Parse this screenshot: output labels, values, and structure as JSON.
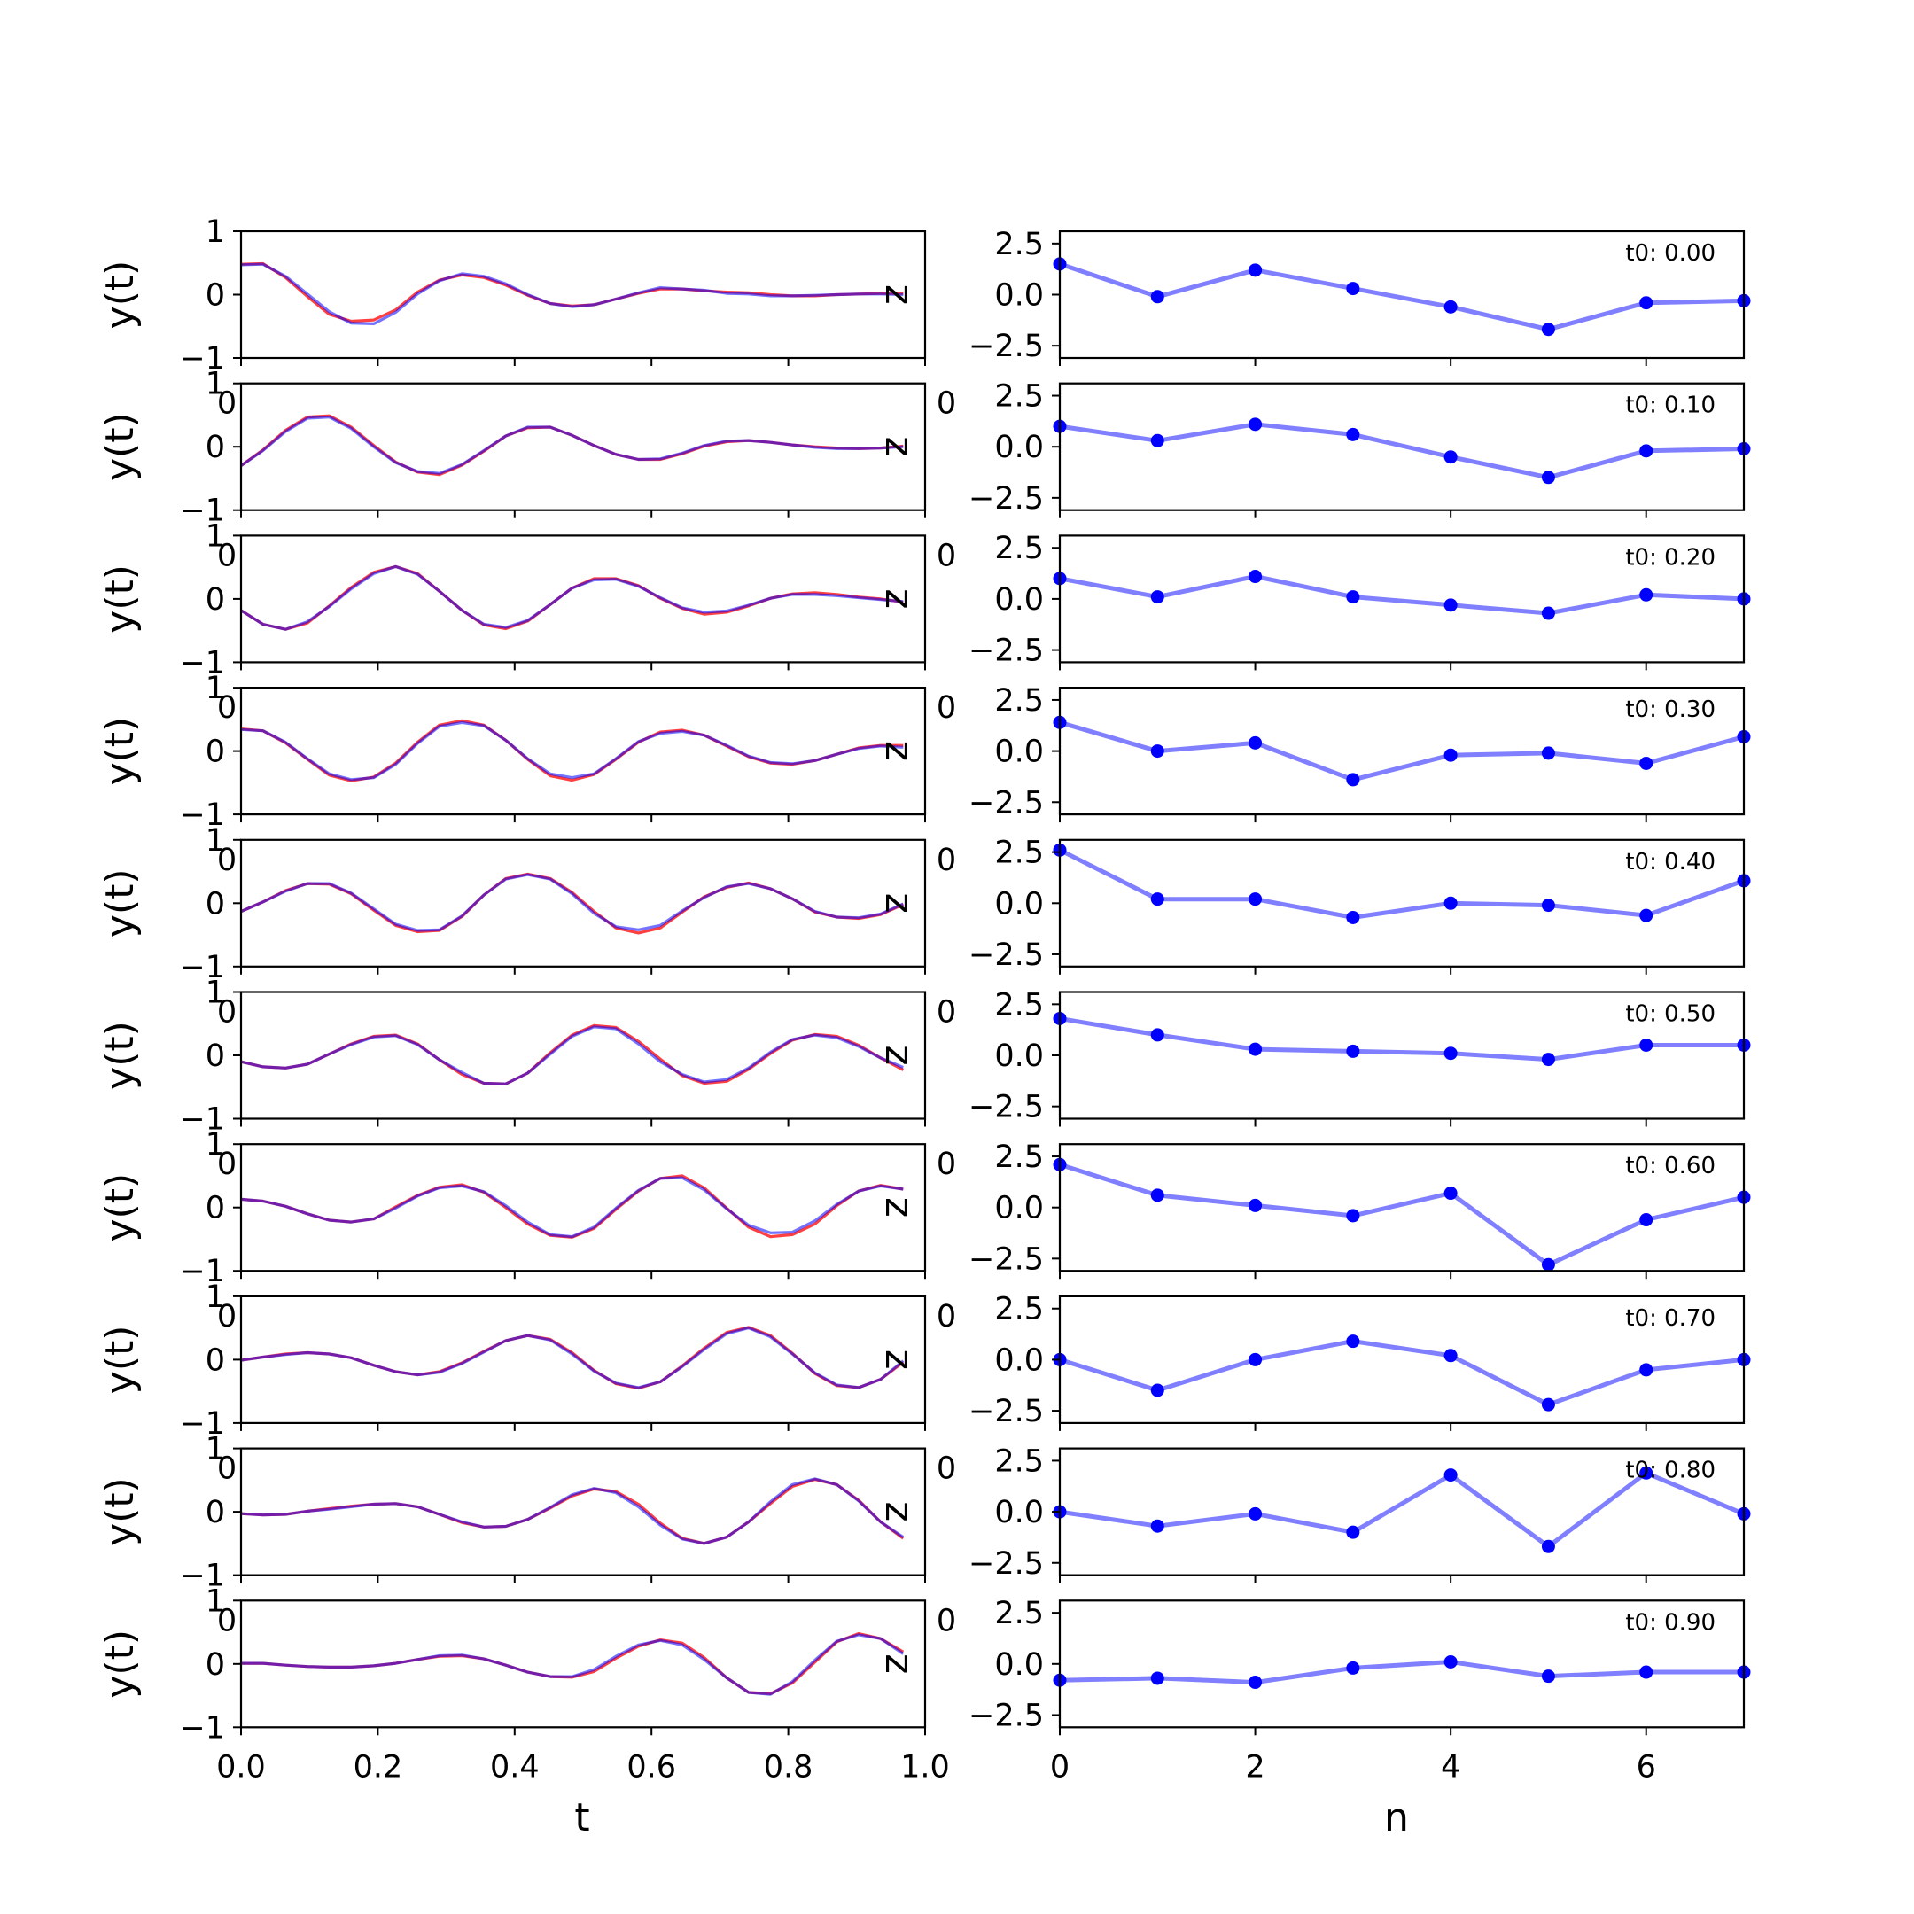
{
  "chart_data": {
    "type": "line",
    "layout": "10 rows x 2 columns of subplots",
    "left_column": {
      "ylabel": "y(t)",
      "xlabel": "t",
      "xlim": [
        0.0,
        1.0
      ],
      "ylim": [
        -1,
        1
      ],
      "xticks": [
        "0.0",
        "0.2",
        "0.4",
        "0.6",
        "0.8",
        "1.0"
      ],
      "yticks": [
        "1",
        "0",
        "−1"
      ],
      "right_axis_label": "z",
      "overlap_label": "0",
      "series_colors": {
        "blue": "#0000ff",
        "red": "#ff0000"
      }
    },
    "right_column": {
      "xlabel": "n",
      "xlim": [
        0,
        7
      ],
      "ylim": [
        -3.1,
        3.1
      ],
      "xticks": [
        "0",
        "2",
        "4",
        "6"
      ],
      "yticks": [
        "2.5",
        "0.0",
        "−2.5"
      ],
      "overlap_label": "0",
      "marker_color": "#0000ff",
      "line_color": "#7f7fff"
    },
    "t": [
      0.0,
      0.032,
      0.065,
      0.097,
      0.129,
      0.161,
      0.194,
      0.226,
      0.258,
      0.29,
      0.323,
      0.355,
      0.387,
      0.419,
      0.452,
      0.484,
      0.516,
      0.548,
      0.581,
      0.613,
      0.645,
      0.677,
      0.71,
      0.742,
      0.774,
      0.806,
      0.839,
      0.871,
      0.903,
      0.935,
      0.968
    ],
    "n": [
      0,
      1,
      2,
      3,
      4,
      5,
      6,
      7
    ],
    "rows": [
      {
        "t0_label": "t0: 0.00",
        "y_blue": [
          0.47,
          0.48,
          0.29,
          0.01,
          -0.27,
          -0.45,
          -0.46,
          -0.28,
          0.01,
          0.22,
          0.33,
          0.29,
          0.17,
          0.0,
          -0.14,
          -0.19,
          -0.16,
          -0.07,
          0.03,
          0.11,
          0.09,
          0.07,
          0.02,
          0.01,
          -0.02,
          -0.02,
          -0.01,
          0.0,
          0.01,
          0.01,
          0.0
        ],
        "y_red": [
          0.48,
          0.49,
          0.27,
          -0.03,
          -0.31,
          -0.42,
          -0.4,
          -0.24,
          0.04,
          0.23,
          0.31,
          0.27,
          0.15,
          -0.01,
          -0.14,
          -0.18,
          -0.16,
          -0.07,
          0.02,
          0.09,
          0.09,
          0.06,
          0.04,
          0.03,
          0.0,
          -0.02,
          -0.02,
          0.0,
          0.01,
          0.02,
          0.02
        ],
        "z": [
          1.5,
          -0.1,
          1.2,
          0.3,
          -0.6,
          -1.7,
          -0.4,
          -0.3
        ]
      },
      {
        "t0_label": "t0: 0.10",
        "y_blue": [
          -0.3,
          -0.06,
          0.24,
          0.45,
          0.47,
          0.29,
          0.0,
          -0.25,
          -0.39,
          -0.42,
          -0.28,
          -0.06,
          0.17,
          0.31,
          0.31,
          0.18,
          0.02,
          -0.12,
          -0.2,
          -0.19,
          -0.1,
          0.02,
          0.09,
          0.1,
          0.07,
          0.03,
          -0.01,
          -0.03,
          -0.03,
          -0.02,
          0.0
        ],
        "y_red": [
          -0.3,
          -0.05,
          0.26,
          0.47,
          0.49,
          0.31,
          0.02,
          -0.24,
          -0.4,
          -0.44,
          -0.29,
          -0.07,
          0.17,
          0.3,
          0.31,
          0.18,
          0.02,
          -0.12,
          -0.2,
          -0.2,
          -0.11,
          0.01,
          0.08,
          0.1,
          0.07,
          0.03,
          0.0,
          -0.02,
          -0.03,
          -0.02,
          0.01
        ],
        "z": [
          1.0,
          0.3,
          1.1,
          0.6,
          -0.5,
          -1.5,
          -0.2,
          -0.1
        ]
      },
      {
        "t0_label": "t0: 0.20",
        "y_blue": [
          -0.18,
          -0.4,
          -0.48,
          -0.36,
          -0.12,
          0.16,
          0.4,
          0.51,
          0.39,
          0.12,
          -0.18,
          -0.4,
          -0.45,
          -0.34,
          -0.09,
          0.17,
          0.3,
          0.31,
          0.2,
          0.02,
          -0.14,
          -0.21,
          -0.19,
          -0.1,
          0.01,
          0.07,
          0.07,
          0.05,
          0.02,
          -0.01,
          -0.04
        ],
        "y_red": [
          -0.18,
          -0.4,
          -0.48,
          -0.38,
          -0.11,
          0.18,
          0.42,
          0.51,
          0.4,
          0.12,
          -0.18,
          -0.41,
          -0.47,
          -0.35,
          -0.09,
          0.17,
          0.32,
          0.32,
          0.21,
          0.01,
          -0.15,
          -0.24,
          -0.21,
          -0.11,
          0.01,
          0.08,
          0.1,
          0.07,
          0.03,
          0.0,
          -0.05
        ],
        "z": [
          1.0,
          0.1,
          1.1,
          0.1,
          -0.3,
          -0.7,
          0.2,
          0.0
        ]
      },
      {
        "t0_label": "t0: 0.30",
        "y_blue": [
          0.34,
          0.32,
          0.14,
          -0.12,
          -0.36,
          -0.45,
          -0.42,
          -0.21,
          0.12,
          0.39,
          0.45,
          0.4,
          0.17,
          -0.12,
          -0.36,
          -0.42,
          -0.36,
          -0.12,
          0.15,
          0.28,
          0.31,
          0.25,
          0.09,
          -0.08,
          -0.18,
          -0.2,
          -0.15,
          -0.05,
          0.04,
          0.08,
          0.06
        ],
        "y_red": [
          0.35,
          0.32,
          0.13,
          -0.13,
          -0.38,
          -0.47,
          -0.41,
          -0.19,
          0.14,
          0.41,
          0.48,
          0.41,
          0.17,
          -0.13,
          -0.39,
          -0.46,
          -0.37,
          -0.13,
          0.14,
          0.3,
          0.33,
          0.25,
          0.08,
          -0.09,
          -0.19,
          -0.21,
          -0.15,
          -0.05,
          0.05,
          0.09,
          0.09
        ],
        "z": [
          1.4,
          0.0,
          0.4,
          -1.4,
          -0.2,
          -0.1,
          -0.6,
          0.7
        ]
      },
      {
        "t0_label": "t0: 0.40",
        "y_blue": [
          -0.13,
          0.02,
          0.19,
          0.31,
          0.31,
          0.16,
          -0.09,
          -0.33,
          -0.43,
          -0.42,
          -0.2,
          0.13,
          0.38,
          0.45,
          0.38,
          0.15,
          -0.16,
          -0.37,
          -0.42,
          -0.35,
          -0.12,
          0.09,
          0.26,
          0.31,
          0.23,
          0.07,
          -0.13,
          -0.22,
          -0.23,
          -0.17,
          -0.01
        ],
        "y_red": [
          -0.13,
          0.02,
          0.2,
          0.31,
          0.3,
          0.15,
          -0.11,
          -0.35,
          -0.45,
          -0.43,
          -0.21,
          0.13,
          0.39,
          0.46,
          0.39,
          0.17,
          -0.13,
          -0.39,
          -0.47,
          -0.39,
          -0.14,
          0.1,
          0.25,
          0.32,
          0.23,
          0.07,
          -0.14,
          -0.22,
          -0.24,
          -0.18,
          -0.02
        ],
        "z": [
          2.6,
          0.2,
          0.2,
          -0.7,
          0.0,
          -0.1,
          -0.6,
          1.1
        ]
      },
      {
        "t0_label": "t0: 0.50",
        "y_blue": [
          -0.1,
          -0.18,
          -0.2,
          -0.14,
          0.02,
          0.17,
          0.29,
          0.31,
          0.17,
          -0.07,
          -0.27,
          -0.44,
          -0.45,
          -0.28,
          0.02,
          0.3,
          0.45,
          0.42,
          0.18,
          -0.1,
          -0.3,
          -0.42,
          -0.38,
          -0.2,
          0.05,
          0.25,
          0.32,
          0.28,
          0.14,
          -0.04,
          -0.19
        ],
        "y_red": [
          -0.1,
          -0.18,
          -0.2,
          -0.14,
          0.02,
          0.18,
          0.3,
          0.32,
          0.18,
          -0.07,
          -0.3,
          -0.44,
          -0.45,
          -0.28,
          0.04,
          0.32,
          0.47,
          0.44,
          0.22,
          -0.06,
          -0.32,
          -0.44,
          -0.41,
          -0.22,
          0.03,
          0.24,
          0.33,
          0.3,
          0.16,
          -0.04,
          -0.23
        ],
        "z": [
          1.8,
          1.0,
          0.3,
          0.2,
          0.1,
          -0.2,
          0.5,
          0.5
        ]
      },
      {
        "t0_label": "t0: 0.60",
        "y_blue": [
          0.13,
          0.1,
          0.02,
          -0.1,
          -0.2,
          -0.23,
          -0.18,
          -0.01,
          0.18,
          0.31,
          0.34,
          0.25,
          0.03,
          -0.23,
          -0.43,
          -0.46,
          -0.31,
          -0.01,
          0.27,
          0.46,
          0.47,
          0.28,
          -0.02,
          -0.28,
          -0.4,
          -0.39,
          -0.21,
          0.05,
          0.26,
          0.34,
          0.29
        ],
        "y_red": [
          0.13,
          0.1,
          0.02,
          -0.1,
          -0.2,
          -0.23,
          -0.18,
          0.01,
          0.19,
          0.32,
          0.36,
          0.24,
          0.0,
          -0.26,
          -0.44,
          -0.47,
          -0.33,
          -0.03,
          0.26,
          0.46,
          0.5,
          0.31,
          -0.01,
          -0.31,
          -0.46,
          -0.43,
          -0.26,
          0.03,
          0.26,
          0.35,
          0.29
        ],
        "z": [
          2.1,
          0.6,
          0.1,
          -0.4,
          0.7,
          -2.8,
          -0.6,
          0.5
        ]
      },
      {
        "t0_label": "t0: 0.70",
        "y_blue": [
          -0.01,
          0.04,
          0.08,
          0.11,
          0.09,
          0.03,
          -0.09,
          -0.19,
          -0.24,
          -0.2,
          -0.06,
          0.12,
          0.3,
          0.38,
          0.31,
          0.09,
          -0.18,
          -0.37,
          -0.44,
          -0.35,
          -0.11,
          0.16,
          0.41,
          0.5,
          0.36,
          0.09,
          -0.21,
          -0.4,
          -0.44,
          -0.31,
          -0.02
        ],
        "y_red": [
          -0.01,
          0.04,
          0.09,
          0.11,
          0.09,
          0.03,
          -0.09,
          -0.19,
          -0.24,
          -0.19,
          -0.05,
          0.13,
          0.3,
          0.38,
          0.32,
          0.11,
          -0.17,
          -0.38,
          -0.45,
          -0.35,
          -0.1,
          0.18,
          0.43,
          0.51,
          0.38,
          0.1,
          -0.22,
          -0.41,
          -0.44,
          -0.31,
          -0.04
        ],
        "z": [
          0.0,
          -1.5,
          0.0,
          0.9,
          0.2,
          -2.2,
          -0.5,
          0.0
        ]
      },
      {
        "t0_label": "t0: 0.80",
        "y_blue": [
          -0.03,
          -0.05,
          -0.04,
          0.01,
          0.04,
          0.08,
          0.12,
          0.13,
          0.08,
          -0.04,
          -0.16,
          -0.24,
          -0.23,
          -0.12,
          0.07,
          0.27,
          0.37,
          0.3,
          0.08,
          -0.21,
          -0.43,
          -0.5,
          -0.4,
          -0.16,
          0.16,
          0.43,
          0.52,
          0.43,
          0.17,
          -0.16,
          -0.4
        ],
        "y_red": [
          -0.03,
          -0.05,
          -0.04,
          0.01,
          0.05,
          0.09,
          0.12,
          0.13,
          0.08,
          -0.04,
          -0.17,
          -0.24,
          -0.23,
          -0.12,
          0.06,
          0.25,
          0.36,
          0.32,
          0.12,
          -0.18,
          -0.42,
          -0.5,
          -0.4,
          -0.16,
          0.13,
          0.4,
          0.51,
          0.43,
          0.18,
          -0.16,
          -0.42
        ],
        "z": [
          0.0,
          -0.7,
          -0.1,
          -1.0,
          1.8,
          -1.7,
          1.9,
          -0.1
        ]
      },
      {
        "t0_label": "t0: 0.90",
        "y_blue": [
          0.01,
          0.01,
          -0.02,
          -0.04,
          -0.05,
          -0.05,
          -0.03,
          0.01,
          0.07,
          0.13,
          0.14,
          0.08,
          -0.02,
          -0.13,
          -0.2,
          -0.2,
          -0.09,
          0.12,
          0.3,
          0.37,
          0.3,
          0.07,
          -0.22,
          -0.45,
          -0.48,
          -0.28,
          0.06,
          0.36,
          0.46,
          0.4,
          0.16
        ],
        "y_red": [
          0.01,
          0.01,
          -0.02,
          -0.04,
          -0.05,
          -0.05,
          -0.03,
          0.01,
          0.07,
          0.12,
          0.13,
          0.08,
          -0.02,
          -0.13,
          -0.2,
          -0.21,
          -0.12,
          0.09,
          0.28,
          0.38,
          0.33,
          0.1,
          -0.22,
          -0.45,
          -0.47,
          -0.3,
          0.03,
          0.35,
          0.48,
          0.4,
          0.19
        ],
        "z": [
          -0.8,
          -0.7,
          -0.9,
          -0.2,
          0.1,
          -0.6,
          -0.4,
          -0.4
        ]
      }
    ]
  }
}
